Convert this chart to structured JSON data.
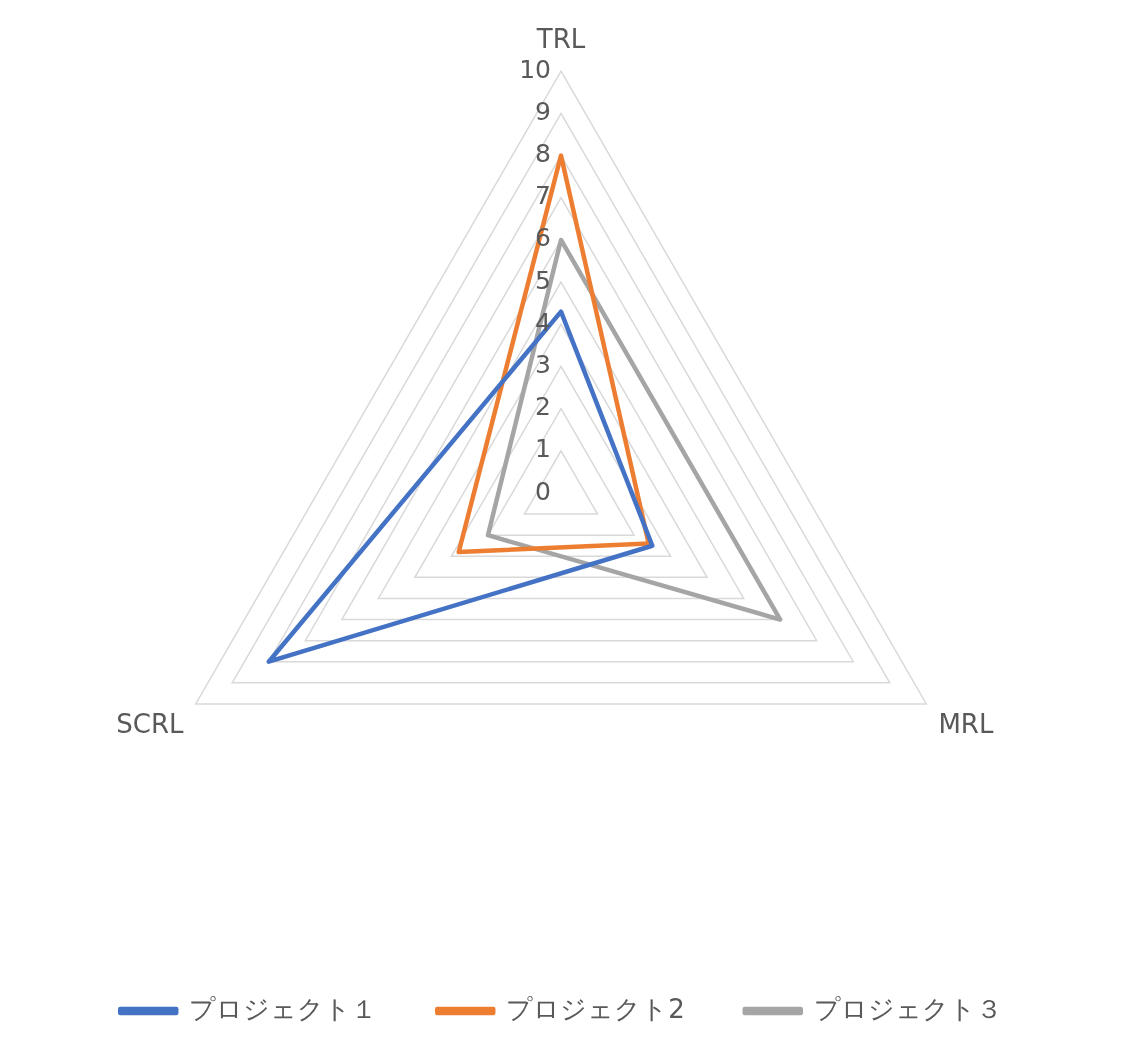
{
  "chart_data": {
    "type": "radar",
    "categories": [
      "TRL",
      "MRL",
      "SCRL"
    ],
    "series": [
      {
        "name": "プロジェクト１",
        "color": "#4472c4",
        "values": [
          4.3,
          2.5,
          8
        ]
      },
      {
        "name": "プロジェクト2",
        "color": "#ed7d31",
        "values": [
          8,
          2.4,
          2.8
        ]
      },
      {
        "name": "プロジェクト３",
        "color": "#a5a5a5",
        "values": [
          6,
          6,
          2
        ]
      }
    ],
    "ylim": [
      0,
      10
    ],
    "yticks": [
      0,
      1,
      2,
      3,
      4,
      5,
      6,
      7,
      8,
      9,
      10
    ],
    "grid": true,
    "legend": "bottom",
    "marker": "none"
  }
}
